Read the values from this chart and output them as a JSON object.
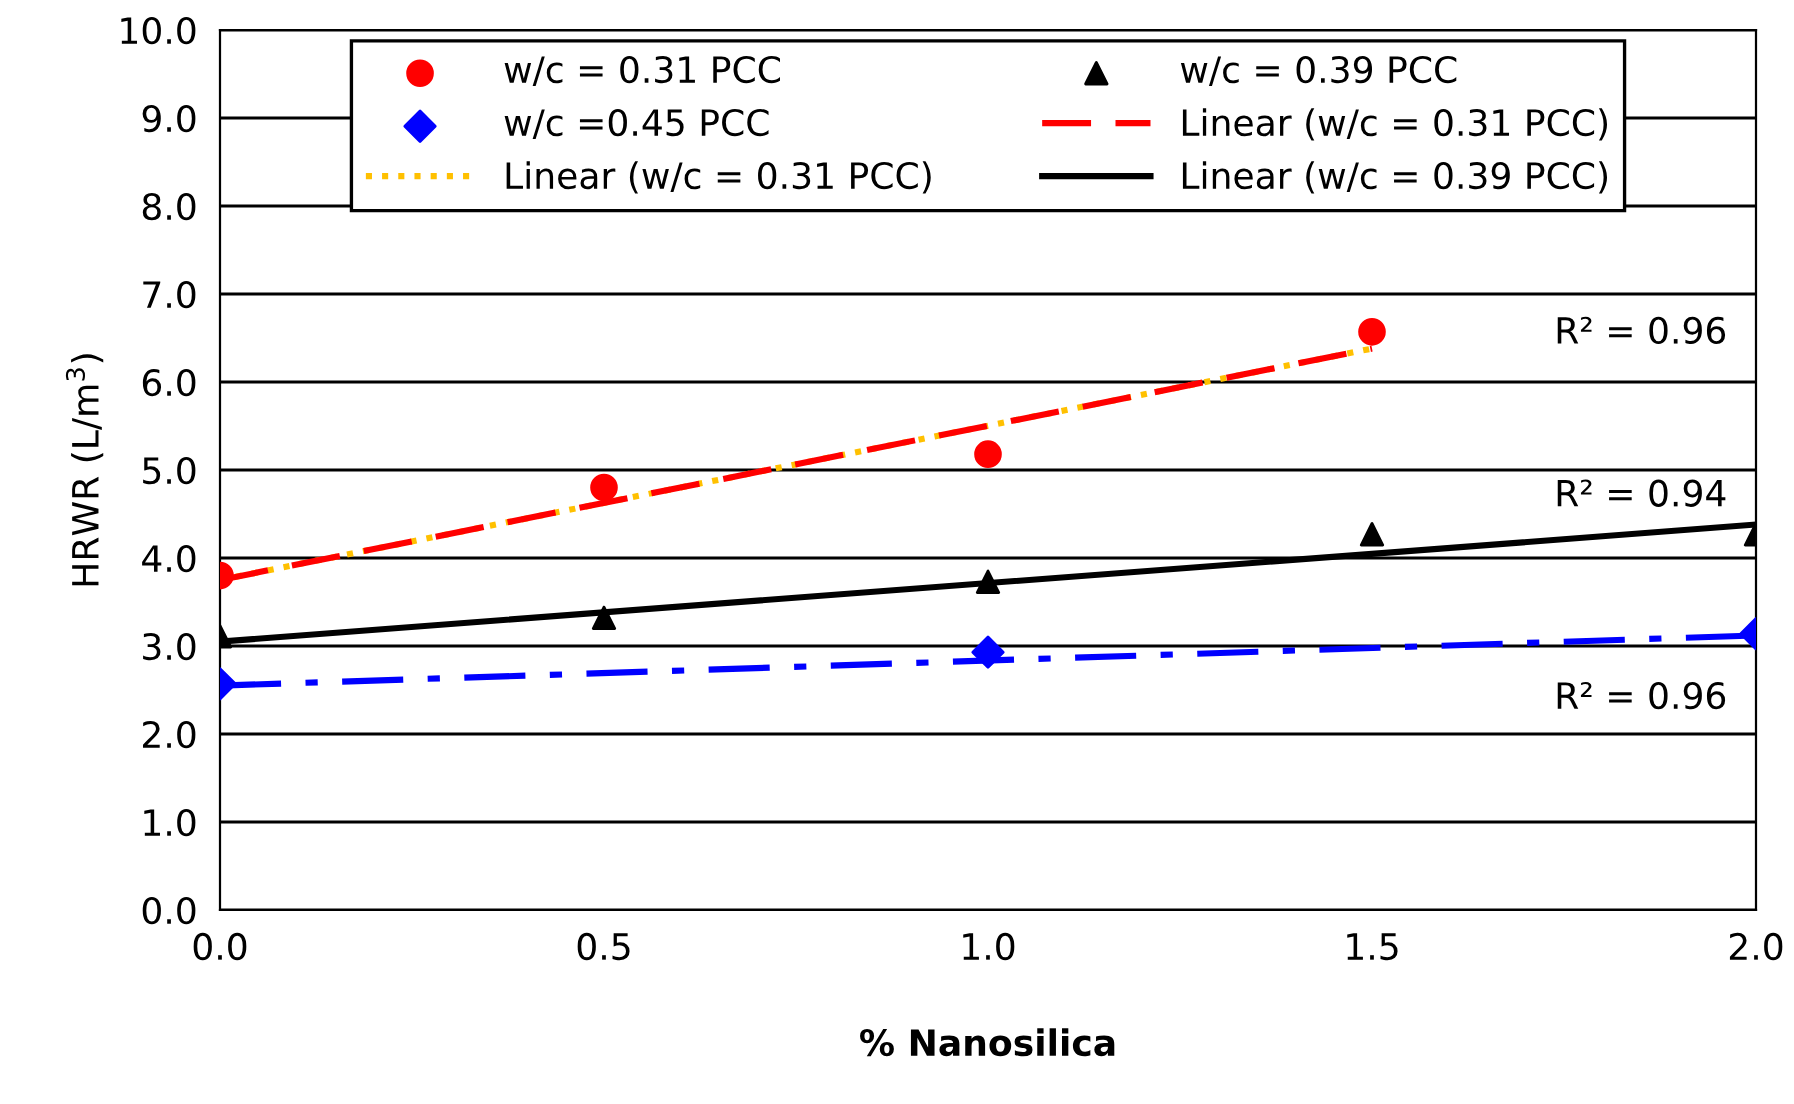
{
  "chart_data": {
    "type": "scatter",
    "xlabel": "% Nanosilica",
    "ylabel": "HRWR (L/m$^{3}$)",
    "xlim": [
      0,
      2
    ],
    "xticks": [
      {
        "value": 0,
        "label": "0.0"
      },
      {
        "value": 0.5,
        "label": "0.5"
      },
      {
        "value": 1,
        "label": "1.0"
      },
      {
        "value": 1.5,
        "label": "1.5"
      },
      {
        "value": 2,
        "label": "2.0"
      }
    ],
    "ylim": [
      0,
      10
    ],
    "yticks": [
      {
        "value": 0,
        "label": "0.0"
      },
      {
        "value": 1,
        "label": "1.0"
      },
      {
        "value": 2,
        "label": "2.0"
      },
      {
        "value": 3,
        "label": "3.0"
      },
      {
        "value": 4,
        "label": "4.0"
      },
      {
        "value": 5,
        "label": "5.0"
      },
      {
        "value": 6,
        "label": "6.0"
      },
      {
        "value": 7,
        "label": "7.0"
      },
      {
        "value": 8,
        "label": "8.0"
      },
      {
        "value": 9,
        "label": "9.0"
      },
      {
        "value": 10,
        "label": "10.0"
      }
    ],
    "grid": "y",
    "legend": "top",
    "series": [
      {
        "name": "w/c = 0.31 PCC",
        "color": "#ff0000",
        "marker": "circle",
        "x": [
          0,
          0.5,
          1,
          1.5
        ],
        "values": [
          3.8,
          4.8,
          5.18,
          6.57
        ]
      },
      {
        "name": "w/c =0.45 PCC",
        "color": "#0000ff",
        "marker": "diamond",
        "x": [
          0,
          1,
          2
        ],
        "values": [
          2.57,
          2.93,
          3.14
        ]
      },
      {
        "type": "line",
        "name": "Linear (w/c = 0.31 PCC)",
        "color": "#ffc000",
        "line_style": "dotted",
        "x": [
          0,
          1.5
        ],
        "values": [
          3.75,
          6.38
        ]
      },
      {
        "name": "w/c = 0.39 PCC",
        "color": "#000000",
        "marker": "triangle",
        "x": [
          0,
          0.5,
          1,
          1.5,
          2
        ],
        "values": [
          3.11,
          3.32,
          3.73,
          4.27,
          4.27
        ]
      },
      {
        "type": "line",
        "name": "Linear (w/c = 0.31 PCC)",
        "color": "#ff0000",
        "line_style": "dashed",
        "x": [
          0,
          1.5
        ],
        "values": [
          3.75,
          6.38
        ]
      },
      {
        "type": "line",
        "name": "Linear (w/c = 0.39 PCC)",
        "color": "#000000",
        "line_style": "solid",
        "x": [
          0,
          2
        ],
        "values": [
          3.05,
          4.38
        ]
      },
      {
        "type": "line",
        "color": "#0000ff",
        "line_style": "dashdot",
        "x": [
          0,
          2
        ],
        "values": [
          2.55,
          3.12
        ]
      }
    ],
    "annotations": [
      "R² = 0.96",
      "R² = 0.94",
      "R² = 0.96"
    ]
  }
}
